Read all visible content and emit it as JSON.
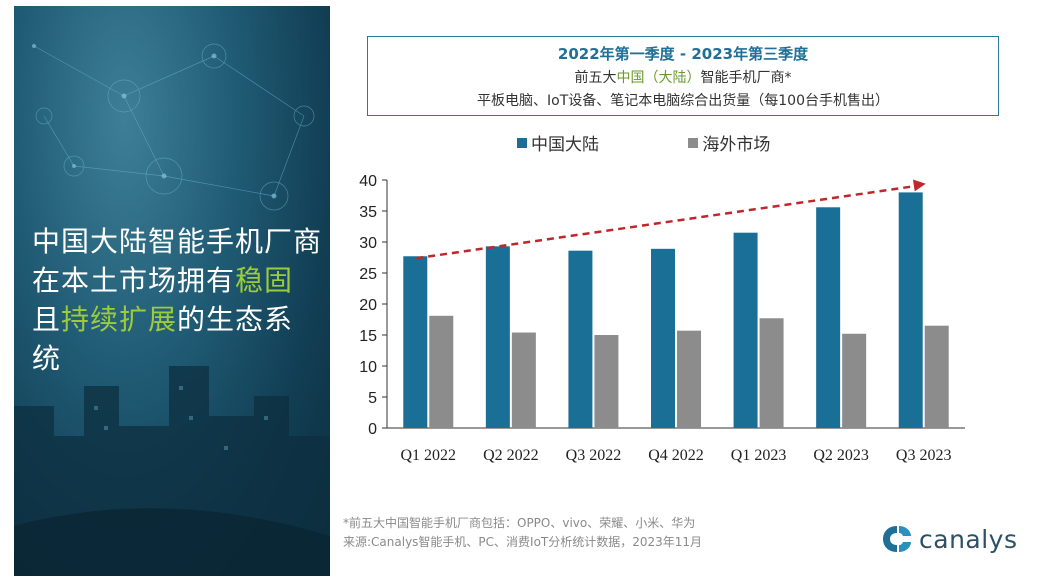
{
  "left_panel": {
    "headline_parts": [
      {
        "text": "中国大陆智能手机厂商在本土市场拥有",
        "highlight": false
      },
      {
        "text": "稳固",
        "highlight": true
      },
      {
        "text": "且",
        "highlight": false
      },
      {
        "text": "持续扩展",
        "highlight": true
      },
      {
        "text": "的生态系统",
        "highlight": false
      }
    ],
    "highlight_color": "#9ccc3a"
  },
  "title": {
    "line1": "2022年第一季度 - 2023年第三季度",
    "line2_pre": "前五大",
    "line2_green": "中国（大陆）",
    "line2_post": "智能手机厂商*",
    "line3": "平板电脑、IoT设备、笔记本电脑综合出货量（每100台手机售出）"
  },
  "footnote": {
    "line1": "*前五大中国智能手机厂商包括：OPPO、vivo、荣耀、小米、华为",
    "line2": "来源:Canalys智能手机、PC、消费IoT分析统计数据，2023年11月"
  },
  "brand": {
    "name": "canalys"
  },
  "chart_data": {
    "type": "bar",
    "categories": [
      "Q1 2022",
      "Q2 2022",
      "Q3 2022",
      "Q4 2022",
      "Q1 2023",
      "Q2 2023",
      "Q3 2023"
    ],
    "series": [
      {
        "name": "中国大陆",
        "color": "#1a6f96",
        "values": [
          27.7,
          29.3,
          28.6,
          28.9,
          31.5,
          35.6,
          38.0
        ]
      },
      {
        "name": "海外市场",
        "color": "#8c8c8c",
        "values": [
          18.1,
          15.4,
          15.0,
          15.7,
          17.7,
          15.2,
          16.5
        ]
      }
    ],
    "ylim": [
      0,
      40
    ],
    "yticks": [
      0,
      5,
      10,
      15,
      20,
      25,
      30,
      35,
      40
    ],
    "trend_arrow": {
      "color": "#c0262b",
      "style": "dashed"
    },
    "legend_position": "top"
  }
}
